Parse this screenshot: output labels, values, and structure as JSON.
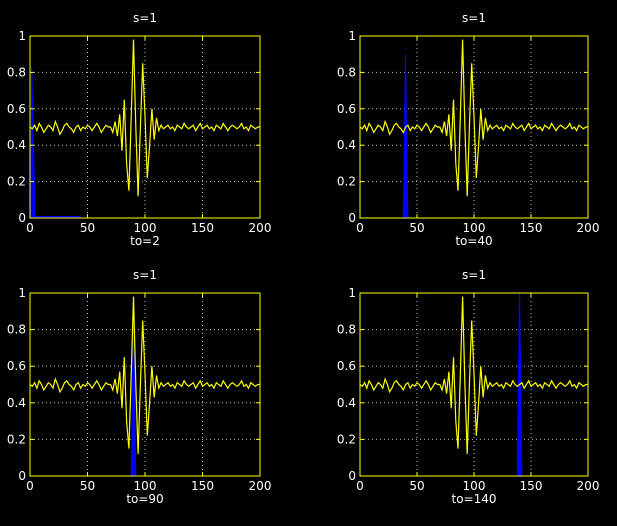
{
  "figure": {
    "background": "#000000",
    "axis_color": "#ffff00",
    "text_color": "#ffffff"
  },
  "chart_data": [
    {
      "type": "line",
      "title": "s=1",
      "xlabel": "to=2",
      "ylabel": "",
      "xlim": [
        0,
        200
      ],
      "ylim": [
        0,
        1
      ],
      "xticks": [
        0,
        50,
        100,
        150,
        200
      ],
      "yticks": [
        0,
        0.2,
        0.4,
        0.6,
        0.8,
        1
      ],
      "grid": true,
      "series": [
        {
          "role": "signal",
          "color": "#ffff00",
          "x": [
            0,
            2,
            4,
            6,
            8,
            10,
            12,
            14,
            16,
            18,
            20,
            22,
            24,
            26,
            28,
            30,
            32,
            34,
            36,
            38,
            40,
            42,
            44,
            46,
            48,
            50,
            52,
            54,
            56,
            58,
            60,
            62,
            64,
            66,
            68,
            70,
            72,
            74,
            76,
            78,
            80,
            82,
            84,
            86,
            88,
            90,
            92,
            94,
            96,
            98,
            100,
            102,
            104,
            106,
            108,
            110,
            112,
            114,
            116,
            118,
            120,
            122,
            124,
            126,
            128,
            130,
            132,
            134,
            136,
            138,
            140,
            142,
            144,
            146,
            148,
            150,
            152,
            154,
            156,
            158,
            160,
            162,
            164,
            166,
            168,
            170,
            172,
            174,
            176,
            178,
            180,
            182,
            184,
            186,
            188,
            190,
            192,
            194,
            196,
            198,
            200
          ],
          "y": [
            0.5,
            0.49,
            0.51,
            0.48,
            0.52,
            0.5,
            0.47,
            0.49,
            0.51,
            0.5,
            0.48,
            0.53,
            0.5,
            0.46,
            0.48,
            0.51,
            0.52,
            0.5,
            0.49,
            0.47,
            0.5,
            0.51,
            0.48,
            0.5,
            0.49,
            0.51,
            0.5,
            0.48,
            0.5,
            0.52,
            0.5,
            0.47,
            0.49,
            0.51,
            0.5,
            0.5,
            0.47,
            0.53,
            0.45,
            0.57,
            0.37,
            0.65,
            0.3,
            0.15,
            0.55,
            0.98,
            0.5,
            0.12,
            0.5,
            0.85,
            0.56,
            0.22,
            0.4,
            0.6,
            0.43,
            0.55,
            0.48,
            0.51,
            0.49,
            0.5,
            0.51,
            0.49,
            0.5,
            0.48,
            0.51,
            0.5,
            0.49,
            0.52,
            0.5,
            0.49,
            0.5,
            0.51,
            0.48,
            0.5,
            0.52,
            0.49,
            0.5,
            0.51,
            0.49,
            0.5,
            0.48,
            0.51,
            0.5,
            0.49,
            0.52,
            0.5,
            0.48,
            0.5,
            0.51,
            0.5,
            0.49,
            0.5,
            0.52,
            0.49,
            0.5,
            0.48,
            0.51,
            0.5,
            0.49,
            0.5,
            0.5
          ]
        },
        {
          "role": "pulse",
          "color": "#0000ff",
          "center": 2,
          "height": 0.83,
          "support": [
            0,
            44
          ]
        }
      ]
    },
    {
      "type": "line",
      "title": "s=1",
      "xlabel": "to=40",
      "ylabel": "",
      "xlim": [
        0,
        200
      ],
      "ylim": [
        0,
        1
      ],
      "xticks": [
        0,
        50,
        100,
        150,
        200
      ],
      "yticks": [
        0,
        0.2,
        0.4,
        0.6,
        0.8,
        1
      ],
      "grid": true,
      "series": [
        {
          "role": "signal",
          "color": "#ffff00",
          "x": [
            0,
            2,
            4,
            6,
            8,
            10,
            12,
            14,
            16,
            18,
            20,
            22,
            24,
            26,
            28,
            30,
            32,
            34,
            36,
            38,
            40,
            42,
            44,
            46,
            48,
            50,
            52,
            54,
            56,
            58,
            60,
            62,
            64,
            66,
            68,
            70,
            72,
            74,
            76,
            78,
            80,
            82,
            84,
            86,
            88,
            90,
            92,
            94,
            96,
            98,
            100,
            102,
            104,
            106,
            108,
            110,
            112,
            114,
            116,
            118,
            120,
            122,
            124,
            126,
            128,
            130,
            132,
            134,
            136,
            138,
            140,
            142,
            144,
            146,
            148,
            150,
            152,
            154,
            156,
            158,
            160,
            162,
            164,
            166,
            168,
            170,
            172,
            174,
            176,
            178,
            180,
            182,
            184,
            186,
            188,
            190,
            192,
            194,
            196,
            198,
            200
          ],
          "y": [
            0.5,
            0.49,
            0.51,
            0.48,
            0.52,
            0.5,
            0.47,
            0.49,
            0.51,
            0.5,
            0.48,
            0.53,
            0.5,
            0.46,
            0.48,
            0.51,
            0.52,
            0.5,
            0.49,
            0.47,
            0.5,
            0.51,
            0.48,
            0.5,
            0.49,
            0.51,
            0.5,
            0.48,
            0.5,
            0.52,
            0.5,
            0.47,
            0.49,
            0.51,
            0.5,
            0.5,
            0.47,
            0.53,
            0.45,
            0.57,
            0.37,
            0.65,
            0.3,
            0.15,
            0.55,
            0.98,
            0.5,
            0.12,
            0.5,
            0.85,
            0.56,
            0.22,
            0.4,
            0.6,
            0.43,
            0.55,
            0.48,
            0.51,
            0.49,
            0.5,
            0.51,
            0.49,
            0.5,
            0.48,
            0.51,
            0.5,
            0.49,
            0.52,
            0.5,
            0.49,
            0.5,
            0.51,
            0.48,
            0.5,
            0.52,
            0.49,
            0.5,
            0.51,
            0.49,
            0.5,
            0.48,
            0.51,
            0.5,
            0.49,
            0.52,
            0.5,
            0.48,
            0.5,
            0.51,
            0.5,
            0.49,
            0.5,
            0.52,
            0.49,
            0.5,
            0.48,
            0.51,
            0.5,
            0.49,
            0.5,
            0.5
          ]
        },
        {
          "role": "pulse",
          "color": "#0000ff",
          "center": 40,
          "height": 0.9,
          "support": [
            38,
            42
          ]
        }
      ]
    },
    {
      "type": "line",
      "title": "s=1",
      "xlabel": "to=90",
      "ylabel": "",
      "xlim": [
        0,
        200
      ],
      "ylim": [
        0,
        1
      ],
      "xticks": [
        0,
        50,
        100,
        150,
        200
      ],
      "yticks": [
        0,
        0.2,
        0.4,
        0.6,
        0.8,
        1
      ],
      "grid": true,
      "series": [
        {
          "role": "signal",
          "color": "#ffff00",
          "x": [
            0,
            2,
            4,
            6,
            8,
            10,
            12,
            14,
            16,
            18,
            20,
            22,
            24,
            26,
            28,
            30,
            32,
            34,
            36,
            38,
            40,
            42,
            44,
            46,
            48,
            50,
            52,
            54,
            56,
            58,
            60,
            62,
            64,
            66,
            68,
            70,
            72,
            74,
            76,
            78,
            80,
            82,
            84,
            86,
            88,
            90,
            92,
            94,
            96,
            98,
            100,
            102,
            104,
            106,
            108,
            110,
            112,
            114,
            116,
            118,
            120,
            122,
            124,
            126,
            128,
            130,
            132,
            134,
            136,
            138,
            140,
            142,
            144,
            146,
            148,
            150,
            152,
            154,
            156,
            158,
            160,
            162,
            164,
            166,
            168,
            170,
            172,
            174,
            176,
            178,
            180,
            182,
            184,
            186,
            188,
            190,
            192,
            194,
            196,
            198,
            200
          ],
          "y": [
            0.5,
            0.49,
            0.51,
            0.48,
            0.52,
            0.5,
            0.47,
            0.49,
            0.51,
            0.5,
            0.48,
            0.53,
            0.5,
            0.46,
            0.48,
            0.51,
            0.52,
            0.5,
            0.49,
            0.47,
            0.5,
            0.51,
            0.48,
            0.5,
            0.49,
            0.51,
            0.5,
            0.48,
            0.5,
            0.52,
            0.5,
            0.47,
            0.49,
            0.51,
            0.5,
            0.5,
            0.47,
            0.53,
            0.45,
            0.57,
            0.37,
            0.65,
            0.3,
            0.15,
            0.55,
            0.98,
            0.5,
            0.12,
            0.5,
            0.85,
            0.56,
            0.22,
            0.4,
            0.6,
            0.43,
            0.55,
            0.48,
            0.51,
            0.49,
            0.5,
            0.51,
            0.49,
            0.5,
            0.48,
            0.51,
            0.5,
            0.49,
            0.52,
            0.5,
            0.49,
            0.5,
            0.51,
            0.48,
            0.5,
            0.52,
            0.49,
            0.5,
            0.51,
            0.49,
            0.5,
            0.48,
            0.51,
            0.5,
            0.49,
            0.52,
            0.5,
            0.48,
            0.5,
            0.51,
            0.5,
            0.49,
            0.5,
            0.52,
            0.49,
            0.5,
            0.48,
            0.51,
            0.5,
            0.49,
            0.5,
            0.5
          ]
        },
        {
          "role": "pulse",
          "color": "#0000ff",
          "center": 90,
          "height": 0.98,
          "support": [
            88,
            92
          ]
        }
      ]
    },
    {
      "type": "line",
      "title": "s=1",
      "xlabel": "to=140",
      "ylabel": "",
      "xlim": [
        0,
        200
      ],
      "ylim": [
        0,
        1
      ],
      "xticks": [
        0,
        50,
        100,
        150,
        200
      ],
      "yticks": [
        0,
        0.2,
        0.4,
        0.6,
        0.8,
        1
      ],
      "grid": true,
      "series": [
        {
          "role": "signal",
          "color": "#ffff00",
          "x": [
            0,
            2,
            4,
            6,
            8,
            10,
            12,
            14,
            16,
            18,
            20,
            22,
            24,
            26,
            28,
            30,
            32,
            34,
            36,
            38,
            40,
            42,
            44,
            46,
            48,
            50,
            52,
            54,
            56,
            58,
            60,
            62,
            64,
            66,
            68,
            70,
            72,
            74,
            76,
            78,
            80,
            82,
            84,
            86,
            88,
            90,
            92,
            94,
            96,
            98,
            100,
            102,
            104,
            106,
            108,
            110,
            112,
            114,
            116,
            118,
            120,
            122,
            124,
            126,
            128,
            130,
            132,
            134,
            136,
            138,
            140,
            142,
            144,
            146,
            148,
            150,
            152,
            154,
            156,
            158,
            160,
            162,
            164,
            166,
            168,
            170,
            172,
            174,
            176,
            178,
            180,
            182,
            184,
            186,
            188,
            190,
            192,
            194,
            196,
            198,
            200
          ],
          "y": [
            0.5,
            0.49,
            0.51,
            0.48,
            0.52,
            0.5,
            0.47,
            0.49,
            0.51,
            0.5,
            0.48,
            0.53,
            0.5,
            0.46,
            0.48,
            0.51,
            0.52,
            0.5,
            0.49,
            0.47,
            0.5,
            0.51,
            0.48,
            0.5,
            0.49,
            0.51,
            0.5,
            0.48,
            0.5,
            0.52,
            0.5,
            0.47,
            0.49,
            0.51,
            0.5,
            0.5,
            0.47,
            0.53,
            0.45,
            0.57,
            0.37,
            0.65,
            0.3,
            0.15,
            0.55,
            0.98,
            0.5,
            0.12,
            0.5,
            0.85,
            0.56,
            0.22,
            0.4,
            0.6,
            0.43,
            0.55,
            0.48,
            0.51,
            0.49,
            0.5,
            0.51,
            0.49,
            0.5,
            0.48,
            0.51,
            0.5,
            0.49,
            0.52,
            0.5,
            0.49,
            0.5,
            0.51,
            0.48,
            0.5,
            0.52,
            0.49,
            0.5,
            0.51,
            0.49,
            0.5,
            0.48,
            0.51,
            0.5,
            0.49,
            0.52,
            0.5,
            0.48,
            0.5,
            0.51,
            0.5,
            0.49,
            0.5,
            0.52,
            0.49,
            0.5,
            0.48,
            0.51,
            0.5,
            0.49,
            0.5,
            0.5
          ]
        },
        {
          "role": "pulse",
          "color": "#0000ff",
          "center": 140,
          "height": 1.0,
          "support": [
            138,
            142
          ]
        }
      ]
    }
  ]
}
